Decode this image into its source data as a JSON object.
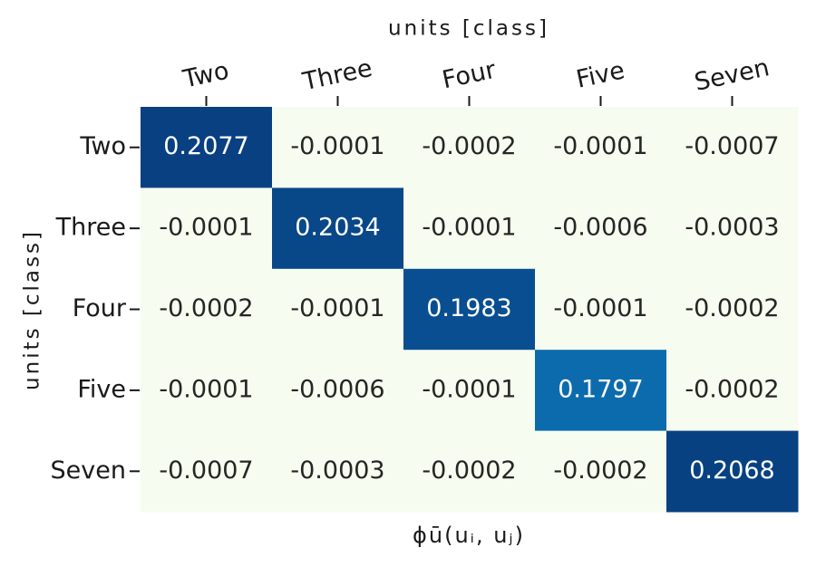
{
  "chart_data": {
    "type": "heatmap",
    "title": "units [class]",
    "ylabel": "units [class]",
    "xlabel": "ϕū(uᵢ, uⱼ)",
    "x_categories": [
      "Two",
      "Three",
      "Four",
      "Five",
      "Seven"
    ],
    "y_categories": [
      "Two",
      "Three",
      "Four",
      "Five",
      "Seven"
    ],
    "values": [
      [
        0.2077,
        -0.0001,
        -0.0002,
        -0.0001,
        -0.0007
      ],
      [
        -0.0001,
        0.2034,
        -0.0001,
        -0.0006,
        -0.0003
      ],
      [
        -0.0002,
        -0.0001,
        0.1983,
        -0.0001,
        -0.0002
      ],
      [
        -0.0001,
        -0.0006,
        -0.0001,
        0.1797,
        -0.0002
      ],
      [
        -0.0007,
        -0.0003,
        -0.0002,
        -0.0002,
        0.2068
      ]
    ],
    "colormap": [
      "#f7fcf0",
      "#e0f3db",
      "#ccebc5",
      "#a8ddb5",
      "#7bccc4",
      "#4eb3d3",
      "#2b8cbe",
      "#0868ac",
      "#084081"
    ]
  }
}
